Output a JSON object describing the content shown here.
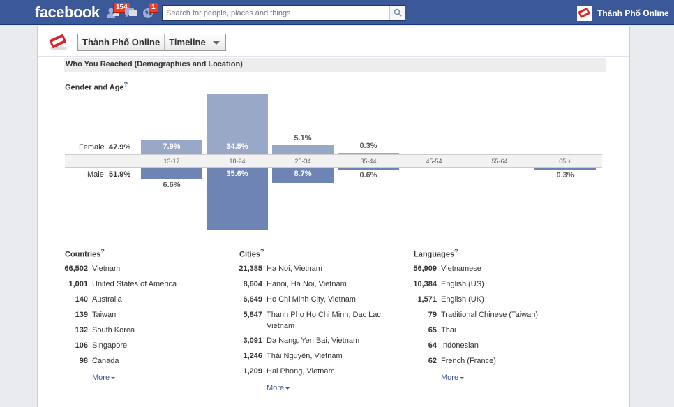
{
  "topbar": {
    "logo": "facebook",
    "friend_requests_count": "154",
    "notifications_count": "1",
    "search_placeholder": "Search for people, places and things",
    "profile_name": "Thành Phố Online"
  },
  "page_header": {
    "page_name": "Thành Phố Online",
    "view_label": "Timeline"
  },
  "section_title": "Who You Reached (Demographics and Location)",
  "gender_age": {
    "title": "Gender and Age",
    "help": "?",
    "female_label": "Female",
    "female_total": "47.9%",
    "male_label": "Male",
    "male_total": "51.9%"
  },
  "chart_data": {
    "type": "bar",
    "title": "Gender and Age",
    "categories": [
      "13-17",
      "18-24",
      "25-34",
      "35-44",
      "45-54",
      "55-64",
      "65+"
    ],
    "series": [
      {
        "name": "Female",
        "values": [
          7.9,
          34.5,
          5.1,
          0.3,
          null,
          null,
          null
        ],
        "labels": [
          "7.9%",
          "34.5%",
          "5.1%",
          "0.3%",
          "",
          "",
          ""
        ]
      },
      {
        "name": "Male",
        "values": [
          6.6,
          35.6,
          8.7,
          0.6,
          null,
          null,
          0.3
        ],
        "labels": [
          "6.6%",
          "35.6%",
          "8.7%",
          "0.6%",
          "",
          "",
          "0.3%"
        ]
      }
    ],
    "tick_labels": [
      "13-17",
      "18-24",
      "25-34",
      "35-44",
      "45-54",
      "55-64",
      "65 +"
    ],
    "colors": {
      "female": "#9aa8c7",
      "male": "#6d84b4"
    }
  },
  "countries": {
    "title": "Countries",
    "help": "?",
    "items": [
      {
        "count": "66,502",
        "name": "Vietnam"
      },
      {
        "count": "1,001",
        "name": "United States of America"
      },
      {
        "count": "140",
        "name": "Australia"
      },
      {
        "count": "139",
        "name": "Taiwan"
      },
      {
        "count": "132",
        "name": "South Korea"
      },
      {
        "count": "106",
        "name": "Singapore"
      },
      {
        "count": "98",
        "name": "Canada"
      }
    ],
    "more": "More"
  },
  "cities": {
    "title": "Cities",
    "help": "?",
    "items": [
      {
        "count": "21,385",
        "name": "Ha Noi, Vietnam"
      },
      {
        "count": "8,604",
        "name": "Hanoi, Ha Noi, Vietnam"
      },
      {
        "count": "6,649",
        "name": "Ho Chi Minh City, Vietnam"
      },
      {
        "count": "5,847",
        "name": "Thanh Pho Ho Chi Minh, Dac Lac, Vietnam"
      },
      {
        "count": "3,091",
        "name": "Da Nang, Yen Bai, Vietnam"
      },
      {
        "count": "1,246",
        "name": "Thái Nguyên, Vietnam"
      },
      {
        "count": "1,209",
        "name": "Hai Phong, Vietnam"
      }
    ],
    "more": "More"
  },
  "languages": {
    "title": "Languages",
    "help": "?",
    "items": [
      {
        "count": "56,909",
        "name": "Vietnamese"
      },
      {
        "count": "10,384",
        "name": "English (US)"
      },
      {
        "count": "1,571",
        "name": "English (UK)"
      },
      {
        "count": "79",
        "name": "Traditional Chinese (Taiwan)"
      },
      {
        "count": "65",
        "name": "Thai"
      },
      {
        "count": "64",
        "name": "Indonesian"
      },
      {
        "count": "62",
        "name": "French (France)"
      }
    ],
    "more": "More"
  },
  "colors": {
    "brand": "#3b5998",
    "badge": "#f03d25"
  }
}
